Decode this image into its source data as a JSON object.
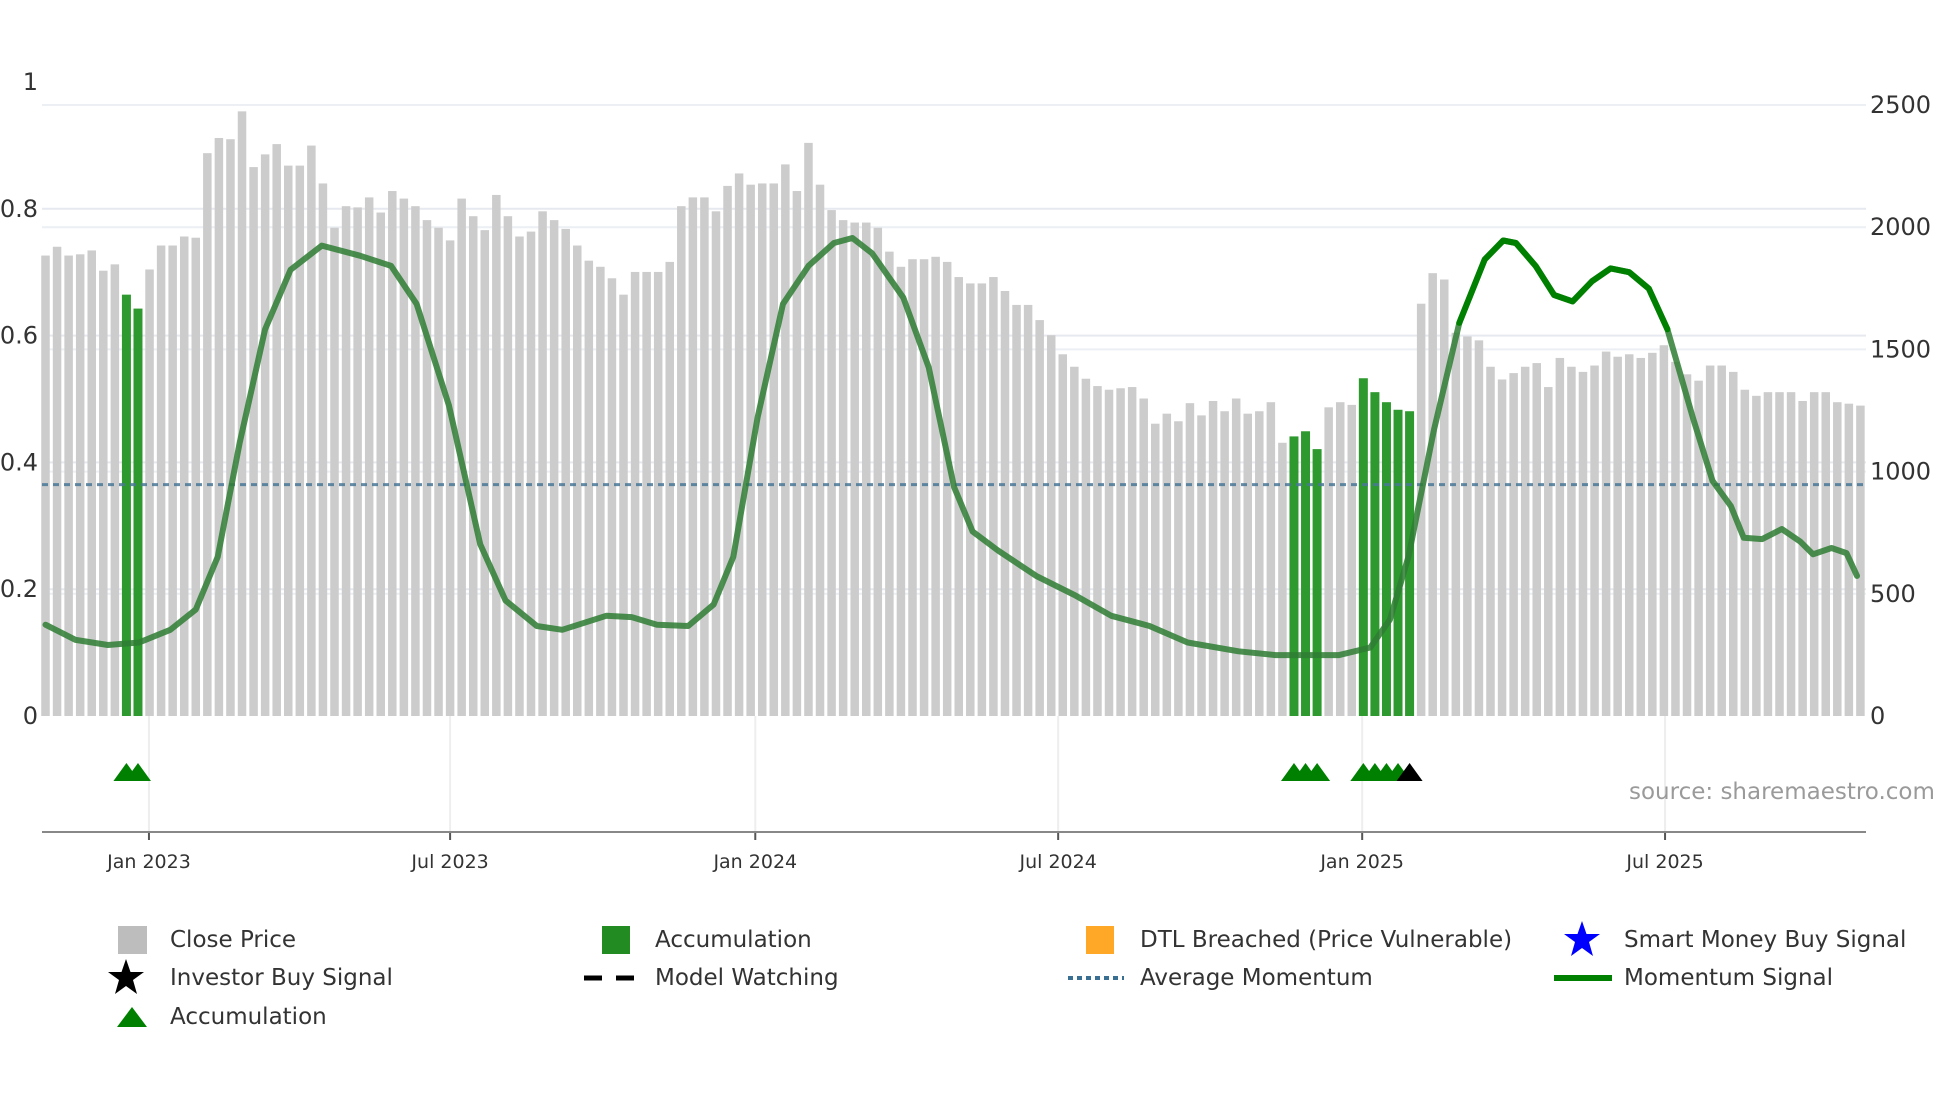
{
  "source_label": "source: sharemaestro.com",
  "colors": {
    "close_price": "#cccccc",
    "accumulation_bar": "#2e992e",
    "accumulation_marker": "#008000",
    "investor_buy": "#000000",
    "smart_money": "#0000ff",
    "dtl": "#ffa726",
    "average_momentum": "#4a7898",
    "momentum": "#2e7d32",
    "momentum_strong": "#008000"
  },
  "legend": [
    {
      "label": "Close Price",
      "icon": "gray-square-icon"
    },
    {
      "label": "Accumulation",
      "icon": "green-square-icon"
    },
    {
      "label": "DTL Breached (Price Vulnerable)",
      "icon": "orange-square-icon"
    },
    {
      "label": "Smart Money Buy Signal",
      "icon": "blue-star-icon"
    },
    {
      "label": "Investor Buy Signal",
      "icon": "black-star-icon"
    },
    {
      "label": "Model Watching",
      "icon": "dashed-line-icon"
    },
    {
      "label": "Average Momentum",
      "icon": "dotted-line-icon"
    },
    {
      "label": "Momentum Signal",
      "icon": "green-line-icon"
    },
    {
      "label": "Accumulation",
      "icon": "green-triangle-icon"
    }
  ],
  "chart_data": {
    "type": "bar+line",
    "title": "",
    "x_ticks": [
      {
        "label": "Jan 2023",
        "index": 8.95
      },
      {
        "label": "Jul 2023",
        "index": 35.0
      },
      {
        "label": "Jan 2024",
        "index": 61.4
      },
      {
        "label": "Jul 2024",
        "index": 87.6
      },
      {
        "label": "Jan 2025",
        "index": 113.9
      },
      {
        "label": "Jul 2025",
        "index": 140.1
      }
    ],
    "left_axis": {
      "range": [
        0,
        1
      ],
      "ticks": [
        "0",
        "0.2",
        "0.4",
        "0.6",
        "0.8",
        "1"
      ],
      "tick_values": [
        0,
        0.2,
        0.4,
        0.6,
        0.8,
        1
      ]
    },
    "right_axis": {
      "range": [
        0,
        2500
      ],
      "ticks": [
        "0",
        "500",
        "1000",
        "1500",
        "2000",
        "2500"
      ],
      "tick_values": [
        0,
        500,
        1000,
        1500,
        2000,
        2500
      ]
    },
    "close_price_weekly": [
      1884,
      1920,
      1884,
      1889,
      1905,
      1822,
      1848,
      1724,
      1667,
      1827,
      1925,
      1925,
      1962,
      1957,
      2303,
      2365,
      2360,
      2474,
      2246,
      2298,
      2340,
      2252,
      2252,
      2334,
      2179,
      1998,
      2086,
      2081,
      2122,
      2060,
      2148,
      2117,
      2086,
      2029,
      1998,
      1946,
      2117,
      2045,
      1988,
      2132,
      2045,
      1962,
      1982,
      2065,
      2029,
      1993,
      1925,
      1863,
      1838,
      1791,
      1724,
      1817,
      1817,
      1817,
      1858,
      2086,
      2122,
      2122,
      2065,
      2169,
      2220,
      2174,
      2179,
      2179,
      2257,
      2148,
      2345,
      2174,
      2070,
      2029,
      2019,
      2019,
      1998,
      1900,
      1838,
      1869,
      1869,
      1879,
      1858,
      1796,
      1770,
      1770,
      1796,
      1739,
      1682,
      1682,
      1620,
      1558,
      1480,
      1429,
      1380,
      1350,
      1335,
      1341,
      1346,
      1299,
      1196,
      1237,
      1206,
      1280,
      1230,
      1289,
      1247,
      1299,
      1237,
      1247,
      1284,
      1118,
      1144,
      1165,
      1092,
      1263,
      1284,
      1273,
      1382,
      1325,
      1284,
      1253,
      1247,
      1687,
      1812,
      1786,
      1568,
      1553,
      1537,
      1429,
      1377,
      1403,
      1429,
      1444,
      1346,
      1465,
      1429,
      1408,
      1434,
      1491,
      1470,
      1480,
      1465,
      1486,
      1517,
      1449,
      1398,
      1372,
      1434,
      1434,
      1408,
      1335,
      1310,
      1325,
      1325,
      1325,
      1289,
      1325,
      1325,
      1284,
      1278,
      1270
    ],
    "accumulation_bar_indices": [
      7,
      8,
      108,
      109,
      110,
      114,
      115,
      116,
      117,
      118
    ],
    "accumulation_markers": [
      7,
      8,
      108,
      109,
      110,
      114,
      115,
      116,
      117
    ],
    "investor_buy_markers": [
      118
    ],
    "average_momentum": 0.365,
    "momentum_strong_range": [
      121,
      141
    ],
    "momentum": [
      [
        0,
        0.144
      ],
      [
        2.6,
        0.12
      ],
      [
        5.4,
        0.112
      ],
      [
        8.1,
        0.116
      ],
      [
        10.8,
        0.136
      ],
      [
        13,
        0.168
      ],
      [
        14.9,
        0.251
      ],
      [
        16.8,
        0.431
      ],
      [
        19,
        0.61
      ],
      [
        21.2,
        0.704
      ],
      [
        23.9,
        0.742
      ],
      [
        27.2,
        0.726
      ],
      [
        29.9,
        0.71
      ],
      [
        32.1,
        0.65
      ],
      [
        34.9,
        0.49
      ],
      [
        37.6,
        0.271
      ],
      [
        39.8,
        0.182
      ],
      [
        42.5,
        0.142
      ],
      [
        44.7,
        0.136
      ],
      [
        48.5,
        0.158
      ],
      [
        50.7,
        0.156
      ],
      [
        52.9,
        0.144
      ],
      [
        55.6,
        0.142
      ],
      [
        57.8,
        0.176
      ],
      [
        59.5,
        0.251
      ],
      [
        61.6,
        0.471
      ],
      [
        63.8,
        0.65
      ],
      [
        66,
        0.71
      ],
      [
        68.2,
        0.746
      ],
      [
        69.8,
        0.754
      ],
      [
        71.5,
        0.73
      ],
      [
        74.2,
        0.66
      ],
      [
        76.4,
        0.55
      ],
      [
        78.6,
        0.361
      ],
      [
        80.2,
        0.291
      ],
      [
        82.4,
        0.261
      ],
      [
        85.7,
        0.221
      ],
      [
        89,
        0.191
      ],
      [
        92.2,
        0.158
      ],
      [
        95.5,
        0.142
      ],
      [
        98.8,
        0.116
      ],
      [
        103.2,
        0.102
      ],
      [
        106.4,
        0.096
      ],
      [
        111.9,
        0.096
      ],
      [
        114.6,
        0.108
      ],
      [
        116.3,
        0.152
      ],
      [
        117.9,
        0.251
      ],
      [
        120.1,
        0.451
      ],
      [
        122.3,
        0.62
      ],
      [
        124.5,
        0.72
      ],
      [
        126.1,
        0.75
      ],
      [
        127.2,
        0.746
      ],
      [
        128.9,
        0.71
      ],
      [
        130.5,
        0.664
      ],
      [
        132.1,
        0.654
      ],
      [
        133.8,
        0.686
      ],
      [
        135.4,
        0.706
      ],
      [
        137,
        0.7
      ],
      [
        138.7,
        0.674
      ],
      [
        140.3,
        0.61
      ],
      [
        142.5,
        0.471
      ],
      [
        144.2,
        0.371
      ],
      [
        145.8,
        0.331
      ],
      [
        146.9,
        0.281
      ],
      [
        148.5,
        0.279
      ],
      [
        150.2,
        0.295
      ],
      [
        151.8,
        0.275
      ],
      [
        152.9,
        0.255
      ],
      [
        154.5,
        0.265
      ],
      [
        155.8,
        0.257
      ],
      [
        156.7,
        0.221
      ]
    ]
  }
}
